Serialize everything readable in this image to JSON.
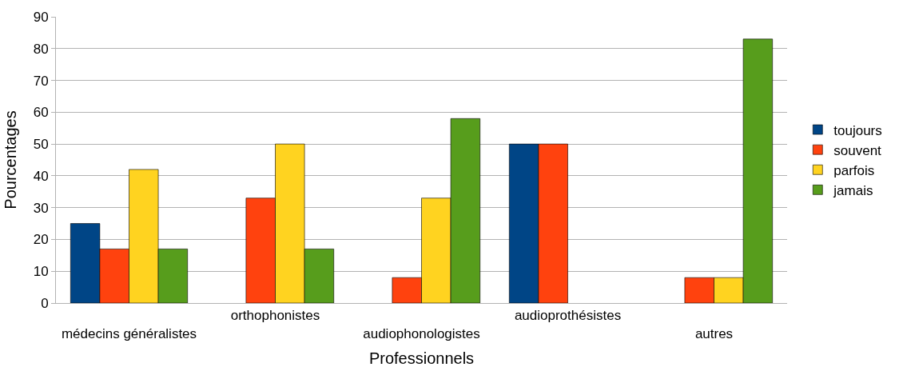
{
  "chart_data": {
    "type": "bar",
    "xlabel": "Professionnels",
    "ylabel": "Pourcentages",
    "categories": [
      "médecins généralistes",
      "orthophonistes",
      "audiophonologistes",
      "audioprothésistes",
      "autres"
    ],
    "series": [
      {
        "name": "toujours",
        "color": "#004586",
        "values": [
          25,
          null,
          null,
          50,
          null
        ]
      },
      {
        "name": "souvent",
        "color": "#ff420e",
        "values": [
          17,
          33,
          8,
          50,
          8
        ]
      },
      {
        "name": "parfois",
        "color": "#ffd320",
        "values": [
          42,
          50,
          33,
          null,
          8
        ]
      },
      {
        "name": "jamais",
        "color": "#579d1c",
        "values": [
          17,
          17,
          58,
          null,
          83
        ]
      }
    ],
    "ylim": [
      0,
      90
    ],
    "yticks": [
      0,
      10,
      20,
      30,
      40,
      50,
      60,
      70,
      80,
      90
    ],
    "grid": "y",
    "legend": "right"
  }
}
